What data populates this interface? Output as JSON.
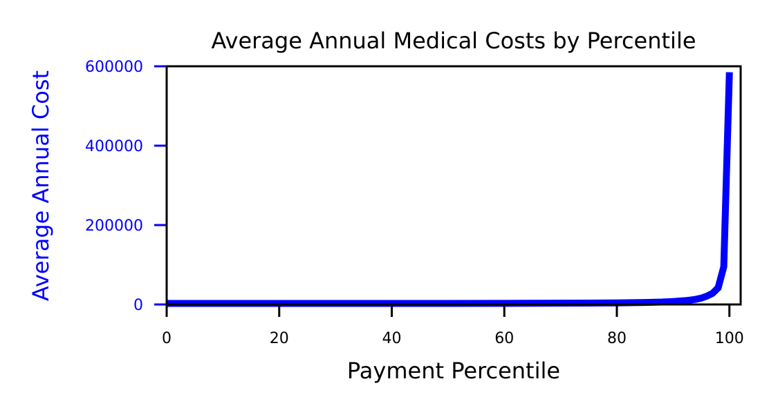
{
  "chart_data": {
    "type": "line",
    "title": "Average Annual Medical Costs by Percentile",
    "xlabel": "Payment Percentile",
    "ylabel": "Average Annual Cost",
    "xlim": [
      0,
      102
    ],
    "ylim": [
      0,
      600000
    ],
    "x_ticks": [
      0,
      20,
      40,
      60,
      80,
      100
    ],
    "y_ticks": [
      0,
      200000,
      400000,
      600000
    ],
    "grid": false,
    "legend": "none",
    "colors": {
      "series": "#0000ff",
      "ylabel": "#0000ff",
      "y_ticks": "#0000ff",
      "x_ticks": "#000000",
      "axes": "#000000"
    },
    "series": [
      {
        "x": [
          0,
          10,
          20,
          30,
          40,
          50,
          60,
          70,
          75,
          80,
          85,
          88,
          90,
          92,
          93,
          94,
          95,
          96,
          97,
          98,
          99,
          100
        ],
        "values": [
          2500,
          2500,
          2500,
          2500,
          2600,
          2700,
          2900,
          3200,
          3500,
          4000,
          5000,
          6000,
          7500,
          9500,
          11000,
          13000,
          16000,
          21000,
          28000,
          42000,
          95000,
          585000
        ]
      }
    ]
  }
}
